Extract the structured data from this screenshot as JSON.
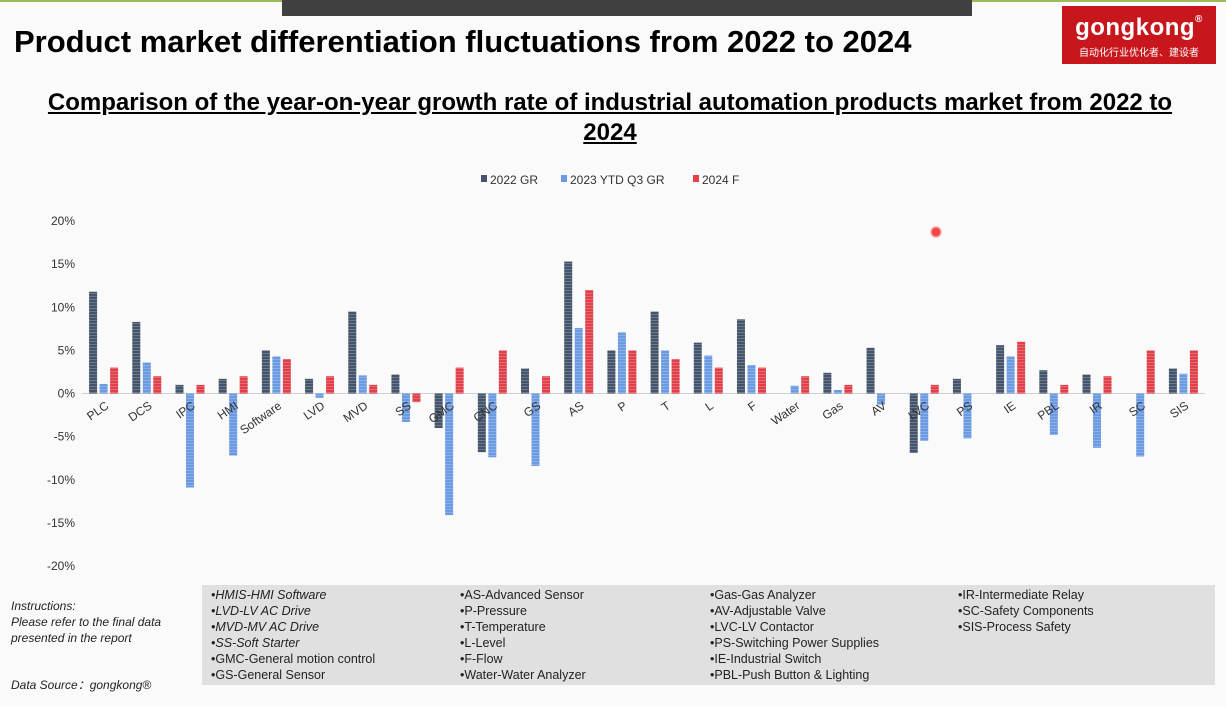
{
  "header": {
    "page_title": "Product market differentiation fluctuations from 2022 to 2024",
    "logo_text": "gongkong",
    "logo_mark": "®",
    "logo_slogan": "自动化行业优化者、建设者"
  },
  "colors": {
    "series_2022": "#44546a",
    "series_2023": "#6a9ae0",
    "series_2024": "#e0404a",
    "logo_bg": "#c8161d"
  },
  "chart_data": {
    "type": "bar",
    "title": "Comparison of the year-on-year growth rate of industrial automation products market from 2022 to 2024",
    "categories": [
      "PLC",
      "DCS",
      "IPC",
      "HMI",
      "Software",
      "LVD",
      "MVD",
      "SS",
      "GMC",
      "CNC",
      "GS",
      "AS",
      "P",
      "T",
      "L",
      "F",
      "Water",
      "Gas",
      "AV",
      "LVC",
      "PS",
      "IE",
      "PBL",
      "IR",
      "SC",
      "SIS"
    ],
    "series": [
      {
        "name": "2022 GR",
        "values": [
          11.8,
          8.3,
          1.0,
          1.7,
          5.0,
          1.7,
          9.5,
          2.2,
          -4.0,
          -6.8,
          2.9,
          15.3,
          5.0,
          9.5,
          5.9,
          8.6,
          0.0,
          2.4,
          5.3,
          -6.9,
          1.7,
          5.6,
          2.7,
          2.2,
          0.0,
          2.9
        ]
      },
      {
        "name": "2023 YTD Q3 GR",
        "values": [
          1.1,
          3.6,
          -10.9,
          -7.2,
          4.3,
          -0.5,
          2.1,
          -3.3,
          -14.1,
          -7.4,
          -8.4,
          7.6,
          7.1,
          5.0,
          4.4,
          3.3,
          0.9,
          0.4,
          -1.3,
          -5.5,
          -5.2,
          4.3,
          -4.8,
          -6.3,
          -7.3,
          2.3
        ]
      },
      {
        "name": "2024 F",
        "values": [
          3.0,
          2.0,
          1.0,
          2.0,
          4.0,
          2.0,
          1.0,
          -1.0,
          3.0,
          5.0,
          2.0,
          12.0,
          5.0,
          4.0,
          3.0,
          3.0,
          2.0,
          1.0,
          0.0,
          1.0,
          0.0,
          6.0,
          1.0,
          2.0,
          5.0,
          5.0
        ]
      }
    ],
    "ylim": [
      -20,
      20
    ],
    "yticks": [
      "20%",
      "15%",
      "10%",
      "5%",
      "0%",
      "-5%",
      "-10%",
      "-15%",
      "-20%"
    ],
    "legend_position": "top-center",
    "grid": false
  },
  "notes": {
    "instructions": [
      "Instructions:",
      "Please refer to the final data",
      "presented in the report"
    ],
    "data_source": "Data Source：gongkong®",
    "abbreviations": [
      [
        "•HMIS-HMI Software",
        "•LVD-LV AC Drive",
        "•MVD-MV AC Drive",
        "•SS-Soft Starter",
        "•GMC-General motion control",
        "•GS-General Sensor"
      ],
      [
        "•AS-Advanced Sensor",
        "•P-Pressure",
        "•T-Temperature",
        "•L-Level",
        "•F-Flow",
        "•Water-Water Analyzer"
      ],
      [
        "•Gas-Gas Analyzer",
        "•AV-Adjustable Valve",
        "•LVC-LV Contactor",
        "•PS-Switching Power Supplies",
        "•IE-Industrial Switch",
        "•PBL-Push Button & Lighting"
      ],
      [
        "•IR-Intermediate Relay",
        "•SC-Safety Components",
        "•SIS-Process Safety"
      ]
    ]
  }
}
